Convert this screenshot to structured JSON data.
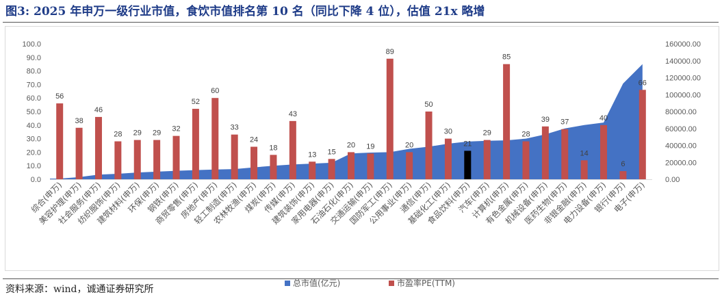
{
  "figure": {
    "title": "图3:    2025 年申万一级行业市值，食饮市值排名第 10 名（同比下降 4 位），估值 21x 略增",
    "source": "资料来源：wind，诚通证券研究所"
  },
  "chart_data": {
    "type": "bar",
    "categories": [
      "综合(申万)",
      "美容护理(申万)",
      "社会服务(申万)",
      "纺织服饰(申万)",
      "建筑材料(申万)",
      "环保(申万)",
      "钢铁(申万)",
      "商贸零售(申万)",
      "房地产(申万)",
      "轻工制造(申万)",
      "农林牧渔(申万)",
      "煤炭(申万)",
      "传媒(申万)",
      "建筑装饰(申万)",
      "家用电器(申万)",
      "石油石化(申万)",
      "交通运输(申万)",
      "国防军工(申万)",
      "公用事业(申万)",
      "通信(申万)",
      "基础化工(申万)",
      "食品饮料(申万)",
      "汽车(申万)",
      "计算机(申万)",
      "有色金属(申万)",
      "机械设备(申万)",
      "医药生物(申万)",
      "非银金融(申万)",
      "电力设备(申万)",
      "银行(申万)",
      "电子(申万)"
    ],
    "series": [
      {
        "name": "总市值(亿元)",
        "kind": "area",
        "axis": "right",
        "color": "#4472c4",
        "values": [
          800,
          2500,
          5500,
          6500,
          8000,
          9000,
          10000,
          10800,
          11500,
          12000,
          14000,
          16000,
          17500,
          18500,
          19500,
          30500,
          31500,
          32000,
          36000,
          38500,
          42000,
          44500,
          45500,
          46000,
          48000,
          53000,
          60000,
          64000,
          67000,
          113000,
          136000
        ]
      },
      {
        "name": "市盈率PE(TTM)",
        "kind": "bar",
        "axis": "left",
        "color": "#c0504d",
        "highlight_color": "#000000",
        "highlight_category": "食品饮料(申万)",
        "values": [
          56,
          38,
          46,
          28,
          29,
          29,
          32,
          52,
          60,
          33,
          24,
          18,
          43,
          13,
          15,
          20,
          19,
          89,
          20,
          50,
          30,
          21,
          29,
          85,
          28,
          39,
          37,
          14,
          40,
          6,
          66
        ]
      }
    ],
    "y_left": {
      "min": 0,
      "max": 100,
      "step": 10,
      "tick_labels": [
        "0.0",
        "10.0",
        "20.0",
        "30.0",
        "40.0",
        "50.0",
        "60.0",
        "70.0",
        "80.0",
        "90.0",
        "100.0"
      ]
    },
    "y_right": {
      "min": 0,
      "max": 160000,
      "step": 20000,
      "tick_labels": [
        "0.00",
        "20000.00",
        "40000.00",
        "60000.00",
        "80000.00",
        "100000.00",
        "120000.00",
        "140000.00",
        "160000.00"
      ]
    },
    "grid": false,
    "legend_position": "bottom"
  }
}
